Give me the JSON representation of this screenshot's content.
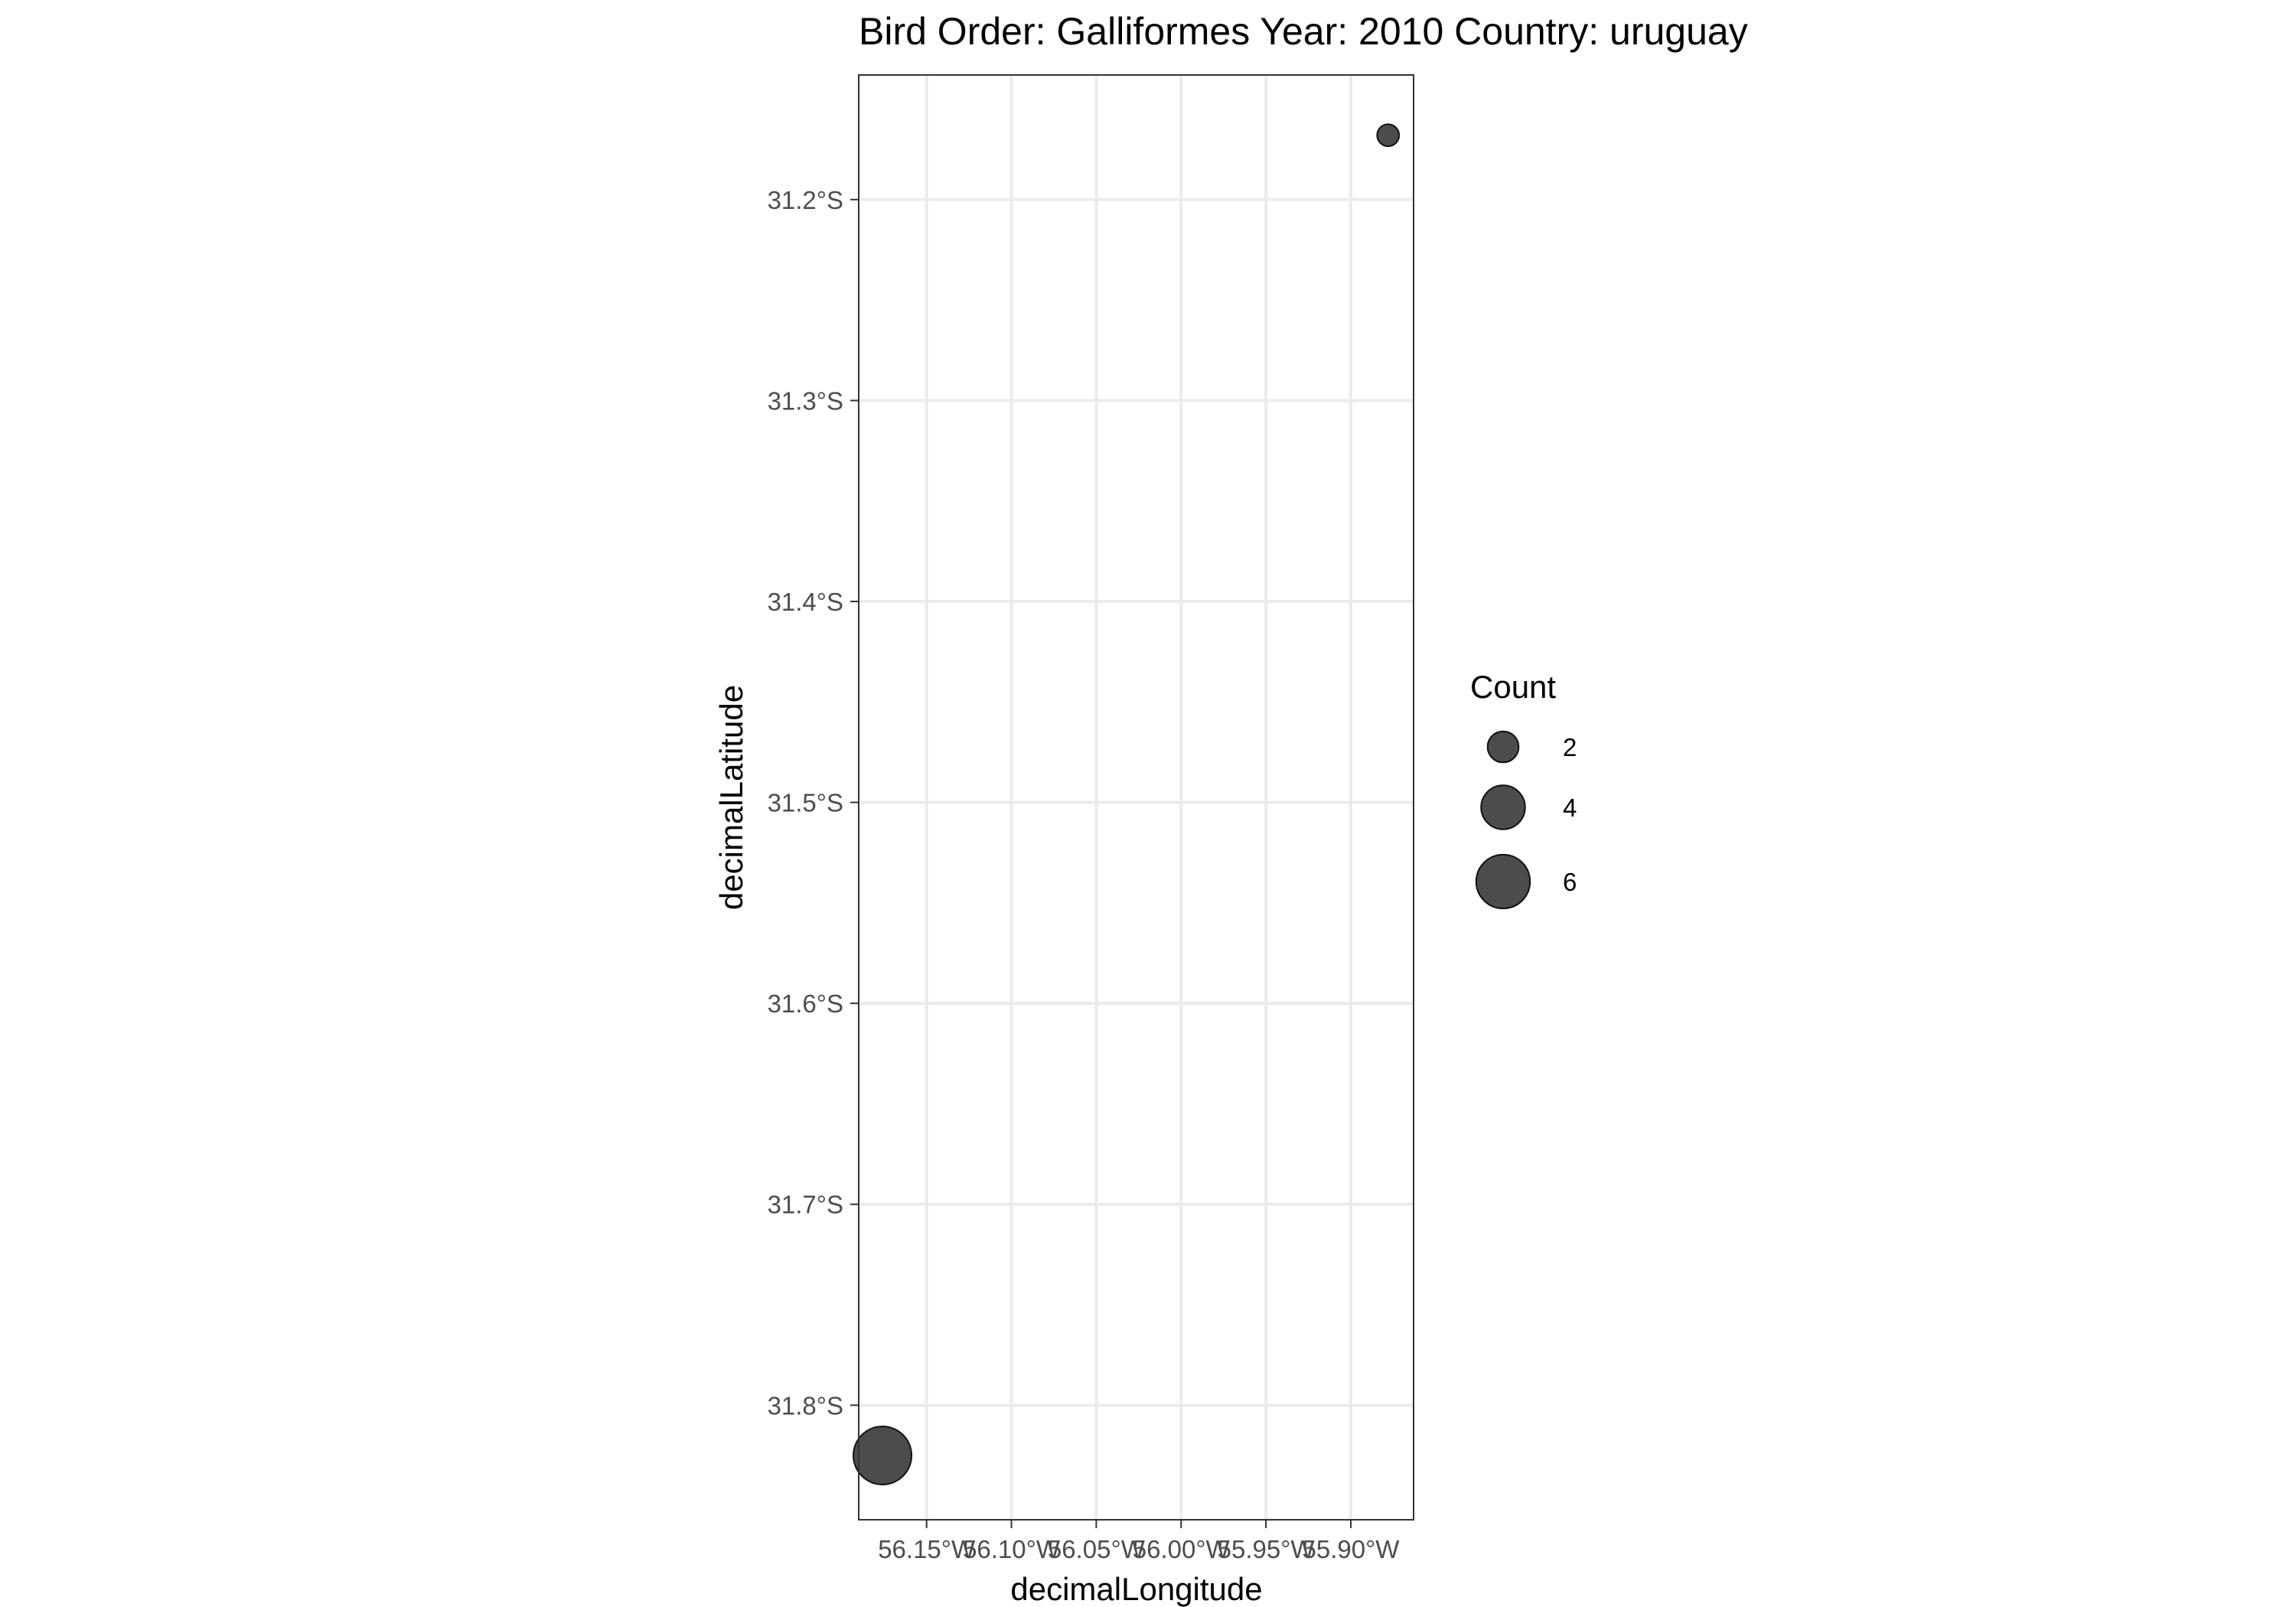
{
  "chart_data": {
    "type": "scatter",
    "title": "Bird Order: Galliformes Year: 2010 Country: uruguay",
    "xlabel": "decimalLongitude",
    "ylabel": "decimalLatitude",
    "x_ticks": [
      {
        "value": -56.15,
        "label": "56.15°W"
      },
      {
        "value": -56.1,
        "label": "56.10°W"
      },
      {
        "value": -56.05,
        "label": "56.05°W"
      },
      {
        "value": -56.0,
        "label": "56.00°W"
      },
      {
        "value": -55.95,
        "label": "55.95°W"
      },
      {
        "value": -55.9,
        "label": "55.90°W"
      }
    ],
    "y_ticks": [
      {
        "value": -31.2,
        "label": "31.2°S"
      },
      {
        "value": -31.3,
        "label": "31.3°S"
      },
      {
        "value": -31.4,
        "label": "31.4°S"
      },
      {
        "value": -31.5,
        "label": "31.5°S"
      },
      {
        "value": -31.6,
        "label": "31.6°S"
      },
      {
        "value": -31.7,
        "label": "31.7°S"
      },
      {
        "value": -31.8,
        "label": "31.8°S"
      }
    ],
    "xlim": [
      -56.19,
      -55.863
    ],
    "ylim": [
      -31.857,
      -31.138
    ],
    "points": [
      {
        "x": -55.878,
        "y": -31.168,
        "count": 1
      },
      {
        "x": -56.176,
        "y": -31.825,
        "count": 7
      }
    ],
    "legend": {
      "title": "Count",
      "position": "right",
      "entries": [
        {
          "value": 2,
          "label": "2"
        },
        {
          "value": 4,
          "label": "4"
        },
        {
          "value": 6,
          "label": "6"
        }
      ]
    },
    "grid": true,
    "point_color": "#333333",
    "gridline_color": "#ebebeb",
    "panel_border_color": "#333333"
  }
}
